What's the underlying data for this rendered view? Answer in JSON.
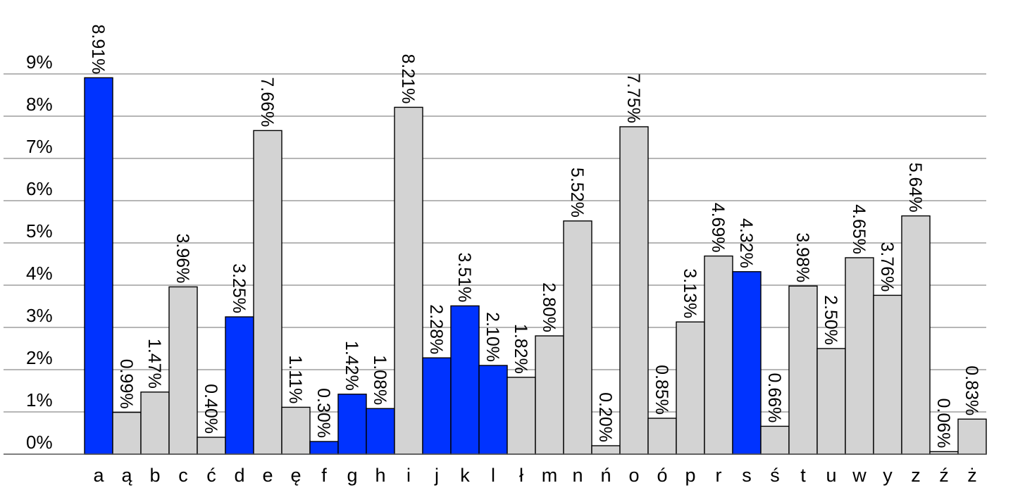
{
  "chart_data": {
    "type": "bar",
    "title": "",
    "xlabel": "",
    "ylabel": "",
    "ylim": [
      0,
      9
    ],
    "y_ticks": [
      0,
      1,
      2,
      3,
      4,
      5,
      6,
      7,
      8,
      9
    ],
    "y_tick_labels": [
      "0%",
      "1%",
      "2%",
      "3%",
      "4%",
      "5%",
      "6%",
      "7%",
      "8%",
      "9%"
    ],
    "grid": true,
    "colors": {
      "highlight": "#0033ff",
      "default": "#d3d3d3",
      "outline": "#000000"
    },
    "categories": [
      "a",
      "ą",
      "b",
      "c",
      "ć",
      "d",
      "e",
      "ę",
      "f",
      "g",
      "h",
      "i",
      "j",
      "k",
      "l",
      "ł",
      "m",
      "n",
      "ń",
      "o",
      "ó",
      "p",
      "r",
      "s",
      "ś",
      "t",
      "u",
      "w",
      "y",
      "z",
      "ź",
      "ż"
    ],
    "values": [
      8.91,
      0.99,
      1.47,
      3.96,
      0.4,
      3.25,
      7.66,
      1.11,
      0.3,
      1.42,
      1.08,
      8.21,
      2.28,
      3.51,
      2.1,
      1.82,
      2.8,
      5.52,
      0.2,
      7.75,
      0.85,
      3.13,
      4.69,
      4.32,
      0.66,
      3.98,
      2.5,
      4.65,
      3.76,
      5.64,
      0.06,
      0.83
    ],
    "value_labels": [
      "8.91%",
      "0.99%",
      "1.47%",
      "3.96%",
      "0.40%",
      "3.25%",
      "7.66%",
      "1.11%",
      "0.30%",
      "1.42%",
      "1.08%",
      "8.21%",
      "2.28%",
      "3.51%",
      "2.10%",
      "1.82%",
      "2.80%",
      "5.52%",
      "0.20%",
      "7.75%",
      "0.85%",
      "3.13%",
      "4.69%",
      "4.32%",
      "0.66%",
      "3.98%",
      "2.50%",
      "4.65%",
      "3.76%",
      "5.64%",
      "0.06%",
      "0.83%"
    ],
    "highlighted": [
      true,
      false,
      false,
      false,
      false,
      true,
      false,
      false,
      true,
      true,
      true,
      false,
      true,
      true,
      true,
      false,
      false,
      false,
      false,
      false,
      false,
      false,
      false,
      true,
      false,
      false,
      false,
      false,
      false,
      false,
      false,
      false
    ]
  }
}
